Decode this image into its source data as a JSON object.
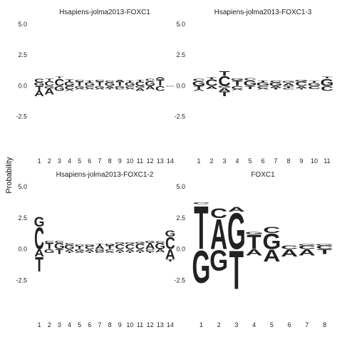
{
  "chart_data": {
    "type": "sequence-logo",
    "ylabel": "Probability",
    "colors": {
      "A": "#109648",
      "C": "#255C99",
      "G": "#F7B32B",
      "T": "#D62839"
    },
    "panels": [
      {
        "title": "Hsapiens-jolma2013-FOXC1",
        "ylim": [
          -3.5,
          5.0
        ],
        "yticks": [
          "5.0",
          "2.5",
          "0.0",
          "-2.5"
        ],
        "positions": [
          [
            [
              "G",
              0.3
            ],
            [
              "C",
              0.3
            ],
            [
              "T",
              -0.4
            ],
            [
              "A",
              -0.45
            ]
          ],
          [
            [
              "C",
              0.4
            ],
            [
              "T",
              0.2
            ],
            [
              "G",
              -0.2
            ],
            [
              "A",
              -0.5
            ]
          ],
          [
            [
              "C",
              0.6
            ],
            [
              "T",
              0.15
            ],
            [
              "G",
              -0.4
            ]
          ],
          [
            [
              "G",
              0.35
            ],
            [
              "T",
              0.2
            ],
            [
              "C",
              -0.3
            ],
            [
              "A",
              -0.1
            ]
          ],
          [
            [
              "T",
              0.35
            ],
            [
              "C",
              0.15
            ],
            [
              "G",
              -0.2
            ],
            [
              "A",
              -0.1
            ]
          ],
          [
            [
              "G",
              0.3
            ],
            [
              "T",
              0.15
            ],
            [
              "C",
              -0.2
            ],
            [
              "A",
              -0.1
            ]
          ],
          [
            [
              "T",
              0.35
            ],
            [
              "C",
              0.15
            ],
            [
              "G",
              -0.2
            ],
            [
              "A",
              -0.1
            ]
          ],
          [
            [
              "G",
              0.3
            ],
            [
              "C",
              0.15
            ],
            [
              "A",
              -0.2
            ],
            [
              "T",
              -0.1
            ]
          ],
          [
            [
              "T",
              0.35
            ],
            [
              "A",
              0.15
            ],
            [
              "G",
              -0.2
            ],
            [
              "C",
              -0.1
            ]
          ],
          [
            [
              "G",
              0.3
            ],
            [
              "T",
              0.15
            ],
            [
              "C",
              -0.2
            ],
            [
              "A",
              -0.1
            ]
          ],
          [
            [
              "C",
              0.35
            ],
            [
              "T",
              0.15
            ],
            [
              "G",
              -0.15
            ],
            [
              "A",
              -0.25
            ]
          ],
          [
            [
              "G",
              0.4
            ],
            [
              "C",
              0.2
            ],
            [
              "A",
              -0.3
            ]
          ],
          [
            [
              "T",
              0.55
            ],
            [
              "A",
              0.2
            ],
            [
              "C",
              -0.4
            ]
          ],
          [
            [
              "C",
              0.05
            ],
            [
              "G",
              -0.05
            ]
          ]
        ]
      },
      {
        "title": "Hsapiens-jolma2013-FOXC1-3",
        "ylim": [
          -3.5,
          5.0
        ],
        "yticks": [
          "5.0",
          "2.5",
          "0.0",
          "-2.5"
        ],
        "positions": [
          [
            [
              "G",
              0.4
            ],
            [
              "C",
              0.2
            ],
            [
              "T",
              -0.3
            ],
            [
              "A",
              -0.1
            ]
          ],
          [
            [
              "C",
              0.55
            ],
            [
              "T",
              0.15
            ],
            [
              "A",
              -0.25
            ]
          ],
          [
            [
              "C",
              0.8
            ],
            [
              "T",
              0.4
            ],
            [
              "G",
              -0.15
            ],
            [
              "A",
              -0.3
            ],
            [
              "T",
              -0.4
            ]
          ],
          [
            [
              "T",
              0.45
            ],
            [
              "G",
              0.15
            ],
            [
              "C",
              -0.25
            ],
            [
              "A",
              -0.1
            ]
          ],
          [
            [
              "G",
              0.45
            ],
            [
              "C",
              0.2
            ],
            [
              "T",
              -0.25
            ]
          ],
          [
            [
              "G",
              0.3
            ],
            [
              "T",
              0.15
            ],
            [
              "C",
              -0.2
            ],
            [
              "A",
              -0.1
            ]
          ],
          [
            [
              "G",
              0.3
            ],
            [
              "C",
              0.15
            ],
            [
              "A",
              -0.15
            ],
            [
              "T",
              -0.15
            ]
          ],
          [
            [
              "A",
              0.25
            ],
            [
              "G",
              0.15
            ],
            [
              "T",
              -0.2
            ],
            [
              "C",
              -0.1
            ]
          ],
          [
            [
              "C",
              0.35
            ],
            [
              "G",
              0.15
            ],
            [
              "A",
              -0.2
            ],
            [
              "T",
              -0.1
            ]
          ],
          [
            [
              "G",
              0.25
            ],
            [
              "T",
              0.15
            ],
            [
              "C",
              -0.25
            ]
          ],
          [
            [
              "G",
              0.6
            ],
            [
              "T",
              0.15
            ],
            [
              "C",
              -0.4
            ]
          ]
        ]
      },
      {
        "title": "Hsapiens-jolma2013-FOXC1-2",
        "ylim": [
          -3.5,
          5.0
        ],
        "yticks": [
          "5.0",
          "2.5",
          "0.0",
          "-2.5"
        ],
        "positions": [
          [
            [
              "C",
              1.8
            ],
            [
              "G",
              0.8
            ],
            [
              "A",
              -0.6
            ],
            [
              "T",
              -1.2
            ]
          ],
          [
            [
              "T",
              0.5
            ],
            [
              "C",
              0.2
            ],
            [
              "G",
              -0.3
            ]
          ],
          [
            [
              "G",
              0.5
            ],
            [
              "C",
              0.2
            ],
            [
              "T",
              -0.4
            ]
          ],
          [
            [
              "G",
              0.35
            ],
            [
              "C",
              0.15
            ],
            [
              "A",
              -0.2
            ],
            [
              "T",
              -0.1
            ]
          ],
          [
            [
              "T",
              0.25
            ],
            [
              "C",
              0.15
            ],
            [
              "G",
              -0.2
            ],
            [
              "A",
              -0.1
            ]
          ],
          [
            [
              "C",
              0.25
            ],
            [
              "G",
              0.15
            ],
            [
              "A",
              -0.2
            ],
            [
              "T",
              -0.1
            ]
          ],
          [
            [
              "A",
              0.3
            ],
            [
              "T",
              0.15
            ],
            [
              "G",
              -0.2
            ],
            [
              "C",
              -0.1
            ]
          ],
          [
            [
              "T",
              0.3
            ],
            [
              "G",
              0.15
            ],
            [
              "C",
              -0.2
            ],
            [
              "A",
              -0.1
            ]
          ],
          [
            [
              "C",
              0.4
            ],
            [
              "G",
              0.15
            ],
            [
              "A",
              -0.2
            ],
            [
              "T",
              -0.1
            ]
          ],
          [
            [
              "C",
              0.4
            ],
            [
              "G",
              0.15
            ],
            [
              "A",
              -0.2
            ],
            [
              "T",
              -0.1
            ]
          ],
          [
            [
              "C",
              0.45
            ],
            [
              "G",
              0.15
            ],
            [
              "A",
              -0.2
            ],
            [
              "T",
              -0.1
            ]
          ],
          [
            [
              "A",
              0.5
            ],
            [
              "G",
              0.2
            ],
            [
              "C",
              -0.2
            ],
            [
              "T",
              -0.1
            ]
          ],
          [
            [
              "G",
              0.5
            ],
            [
              "C",
              0.15
            ],
            [
              "A",
              -0.25
            ]
          ],
          [
            [
              "C",
              1.0
            ],
            [
              "G",
              0.5
            ],
            [
              "A",
              -0.8
            ],
            [
              "T",
              -0.2
            ]
          ]
        ]
      },
      {
        "title": "FOXC1",
        "ylim": [
          -3.5,
          5.0
        ],
        "yticks": [
          "5.0",
          "2.5",
          "0.0",
          "-2.5"
        ],
        "positions": [
          [
            [
              "T",
              3.6
            ],
            [
              "C",
              0.15
            ],
            [
              "G",
              -2.7
            ]
          ],
          [
            [
              "A",
              2.5
            ],
            [
              "C",
              0.8
            ],
            [
              "G",
              -1.7
            ]
          ],
          [
            [
              "G",
              3.0
            ],
            [
              "A",
              0.4
            ],
            [
              "T",
              -3.2
            ]
          ],
          [
            [
              "T",
              1.2
            ],
            [
              "G",
              0.2
            ],
            [
              "A",
              -0.5
            ]
          ],
          [
            [
              "G",
              1.3
            ],
            [
              "C",
              0.5
            ],
            [
              "A",
              -1.0
            ]
          ],
          [
            [
              "C",
              0.3
            ],
            [
              "A",
              -0.6
            ]
          ],
          [
            [
              "C",
              0.3
            ],
            [
              "G",
              0.1
            ],
            [
              "A",
              -0.5
            ]
          ],
          [
            [
              "C",
              0.3
            ],
            [
              "G",
              0.1
            ],
            [
              "T",
              -0.4
            ]
          ]
        ]
      }
    ]
  }
}
